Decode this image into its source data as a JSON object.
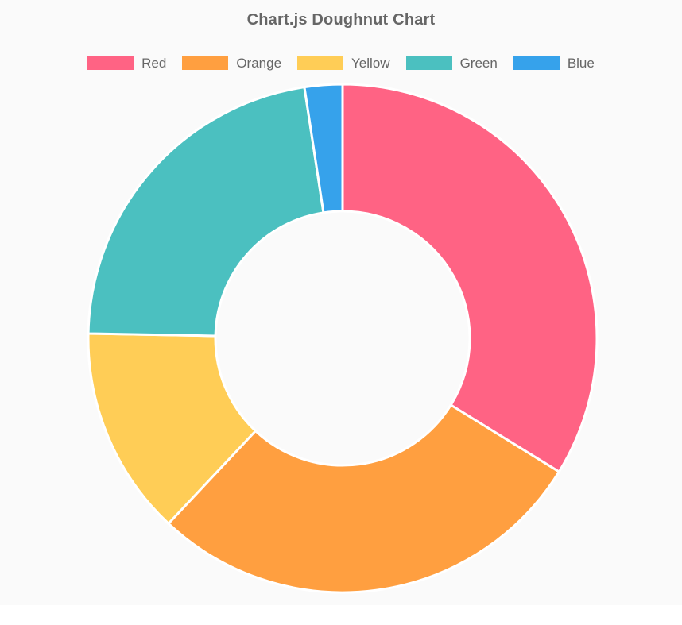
{
  "chart": {
    "title": "Chart.js Doughnut Chart"
  },
  "legend": {
    "position": "top",
    "items": [
      {
        "label": "Red",
        "color": "#FF6384"
      },
      {
        "label": "Orange",
        "color": "#FF9F40"
      },
      {
        "label": "Yellow",
        "color": "#FFCD56"
      },
      {
        "label": "Green",
        "color": "#4BC0C0"
      },
      {
        "label": "Blue",
        "color": "#36A2EB"
      }
    ]
  },
  "chart_data": {
    "type": "pie",
    "variant": "doughnut",
    "title": "Chart.js Doughnut Chart",
    "categories": [
      "Red",
      "Orange",
      "Yellow",
      "Green",
      "Blue"
    ],
    "values": [
      33.8,
      28.2,
      13.3,
      22.3,
      2.4
    ],
    "values_unit": "percent (estimated from arc angles)",
    "colors": [
      "#FF6384",
      "#FF9F40",
      "#FFCD56",
      "#4BC0C0",
      "#36A2EB"
    ],
    "start_position": "top",
    "direction": "clockwise",
    "cutout_percent": 50,
    "border_color": "#FFFFFF",
    "border_width": 3,
    "legend_position": "top",
    "title_color": "#666666",
    "legend_text_color": "#666666",
    "canvas_background": "#FAFAFA"
  }
}
